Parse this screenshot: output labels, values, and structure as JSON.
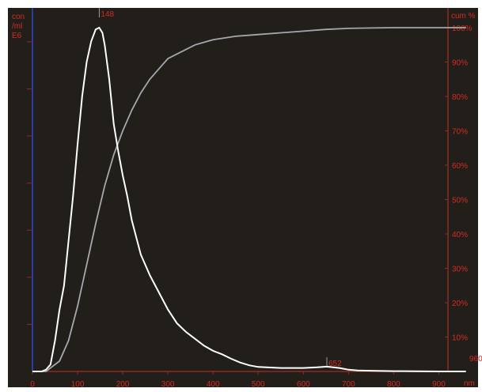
{
  "chart_data": {
    "type": "line",
    "xlabel": "nm",
    "ylabel_left": "con /ml E6",
    "ylabel_right": "cum %",
    "xlim": [
      0,
      960
    ],
    "ylim_right": [
      0,
      100
    ],
    "x_ticks": [
      "0",
      "100",
      "200",
      "300",
      "400",
      "500",
      "600",
      "700",
      "800",
      "900"
    ],
    "y_right_ticks": [
      "10%",
      "20%",
      "30%",
      "40%",
      "50%",
      "60%",
      "70%",
      "80%",
      "90%",
      "100%"
    ],
    "x_end_label": "960",
    "annotations": [
      {
        "text": "148",
        "x": 148
      },
      {
        "text": "652",
        "x": 652
      }
    ],
    "grid": false,
    "series": [
      {
        "role": "concentration (relative, peak = 1)",
        "x": [
          0,
          20,
          30,
          40,
          50,
          60,
          70,
          80,
          90,
          100,
          110,
          120,
          130,
          140,
          148,
          155,
          160,
          170,
          180,
          190,
          200,
          210,
          220,
          240,
          260,
          280,
          300,
          320,
          340,
          360,
          380,
          400,
          420,
          440,
          460,
          480,
          500,
          550,
          600,
          630,
          652,
          680,
          700,
          720,
          750,
          800,
          900,
          960
        ],
        "y": [
          0,
          0,
          0.005,
          0.02,
          0.09,
          0.18,
          0.25,
          0.38,
          0.51,
          0.66,
          0.8,
          0.9,
          0.96,
          0.995,
          1.0,
          0.985,
          0.95,
          0.85,
          0.72,
          0.64,
          0.57,
          0.51,
          0.44,
          0.34,
          0.28,
          0.23,
          0.18,
          0.14,
          0.115,
          0.095,
          0.075,
          0.06,
          0.05,
          0.037,
          0.026,
          0.018,
          0.013,
          0.01,
          0.01,
          0.012,
          0.014,
          0.01,
          0.005,
          0.003,
          0.002,
          0.001,
          0,
          0
        ]
      },
      {
        "role": "cumulative %",
        "x": [
          0,
          20,
          30,
          40,
          60,
          80,
          100,
          120,
          140,
          160,
          180,
          200,
          220,
          240,
          260,
          280,
          300,
          330,
          360,
          400,
          450,
          500,
          550,
          600,
          650,
          700,
          750,
          800,
          900,
          960
        ],
        "y": [
          0,
          0,
          0,
          1,
          3,
          9,
          19,
          31,
          43,
          54,
          63,
          70,
          76,
          81,
          85,
          88,
          91,
          93,
          95,
          96.5,
          97.5,
          98,
          98.5,
          99,
          99.5,
          99.8,
          99.9,
          100,
          100,
          100
        ]
      }
    ]
  }
}
